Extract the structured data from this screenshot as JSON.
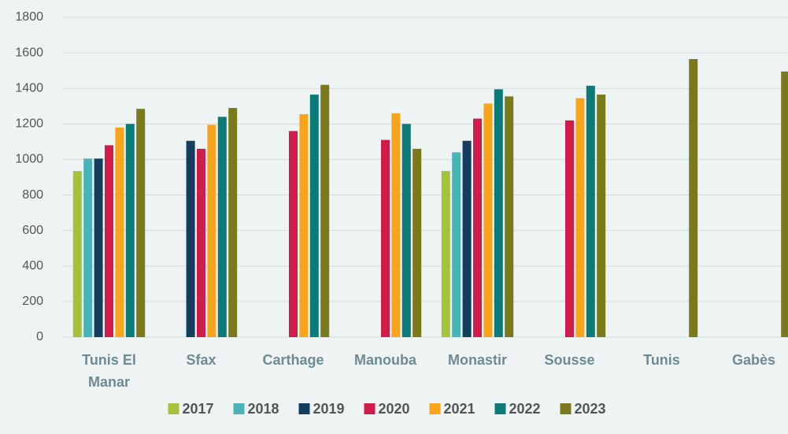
{
  "chart_data": {
    "type": "bar",
    "categories": [
      "Tunis El Manar",
      "Sfax",
      "Carthage",
      "Manouba",
      "Monastir",
      "Sousse",
      "Tunis",
      "Gabès"
    ],
    "series": [
      {
        "name": "2017",
        "color": "#a5c23a",
        "values": [
          935,
          null,
          null,
          null,
          935,
          null,
          null,
          null
        ]
      },
      {
        "name": "2018",
        "color": "#4ab3b8",
        "values": [
          1005,
          null,
          null,
          null,
          1040,
          null,
          null,
          null
        ]
      },
      {
        "name": "2019",
        "color": "#153e5e",
        "values": [
          1005,
          1105,
          null,
          null,
          1105,
          null,
          null,
          null
        ]
      },
      {
        "name": "2020",
        "color": "#d01c4b",
        "values": [
          1080,
          1060,
          1160,
          1110,
          1230,
          1220,
          null,
          null
        ]
      },
      {
        "name": "2021",
        "color": "#f8a51c",
        "values": [
          1180,
          1195,
          1255,
          1260,
          1315,
          1345,
          null,
          null
        ]
      },
      {
        "name": "2022",
        "color": "#0c7a77",
        "values": [
          1200,
          1240,
          1365,
          1200,
          1395,
          1415,
          null,
          null
        ]
      },
      {
        "name": "2023",
        "color": "#7a7a1c",
        "values": [
          1285,
          1290,
          1420,
          1060,
          1355,
          1365,
          1565,
          1495
        ]
      }
    ],
    "ylim": [
      0,
      1800
    ],
    "yticks": [
      0,
      200,
      400,
      600,
      800,
      1000,
      1200,
      1400,
      1600,
      1800
    ],
    "grid": true,
    "legend": "bottom"
  }
}
